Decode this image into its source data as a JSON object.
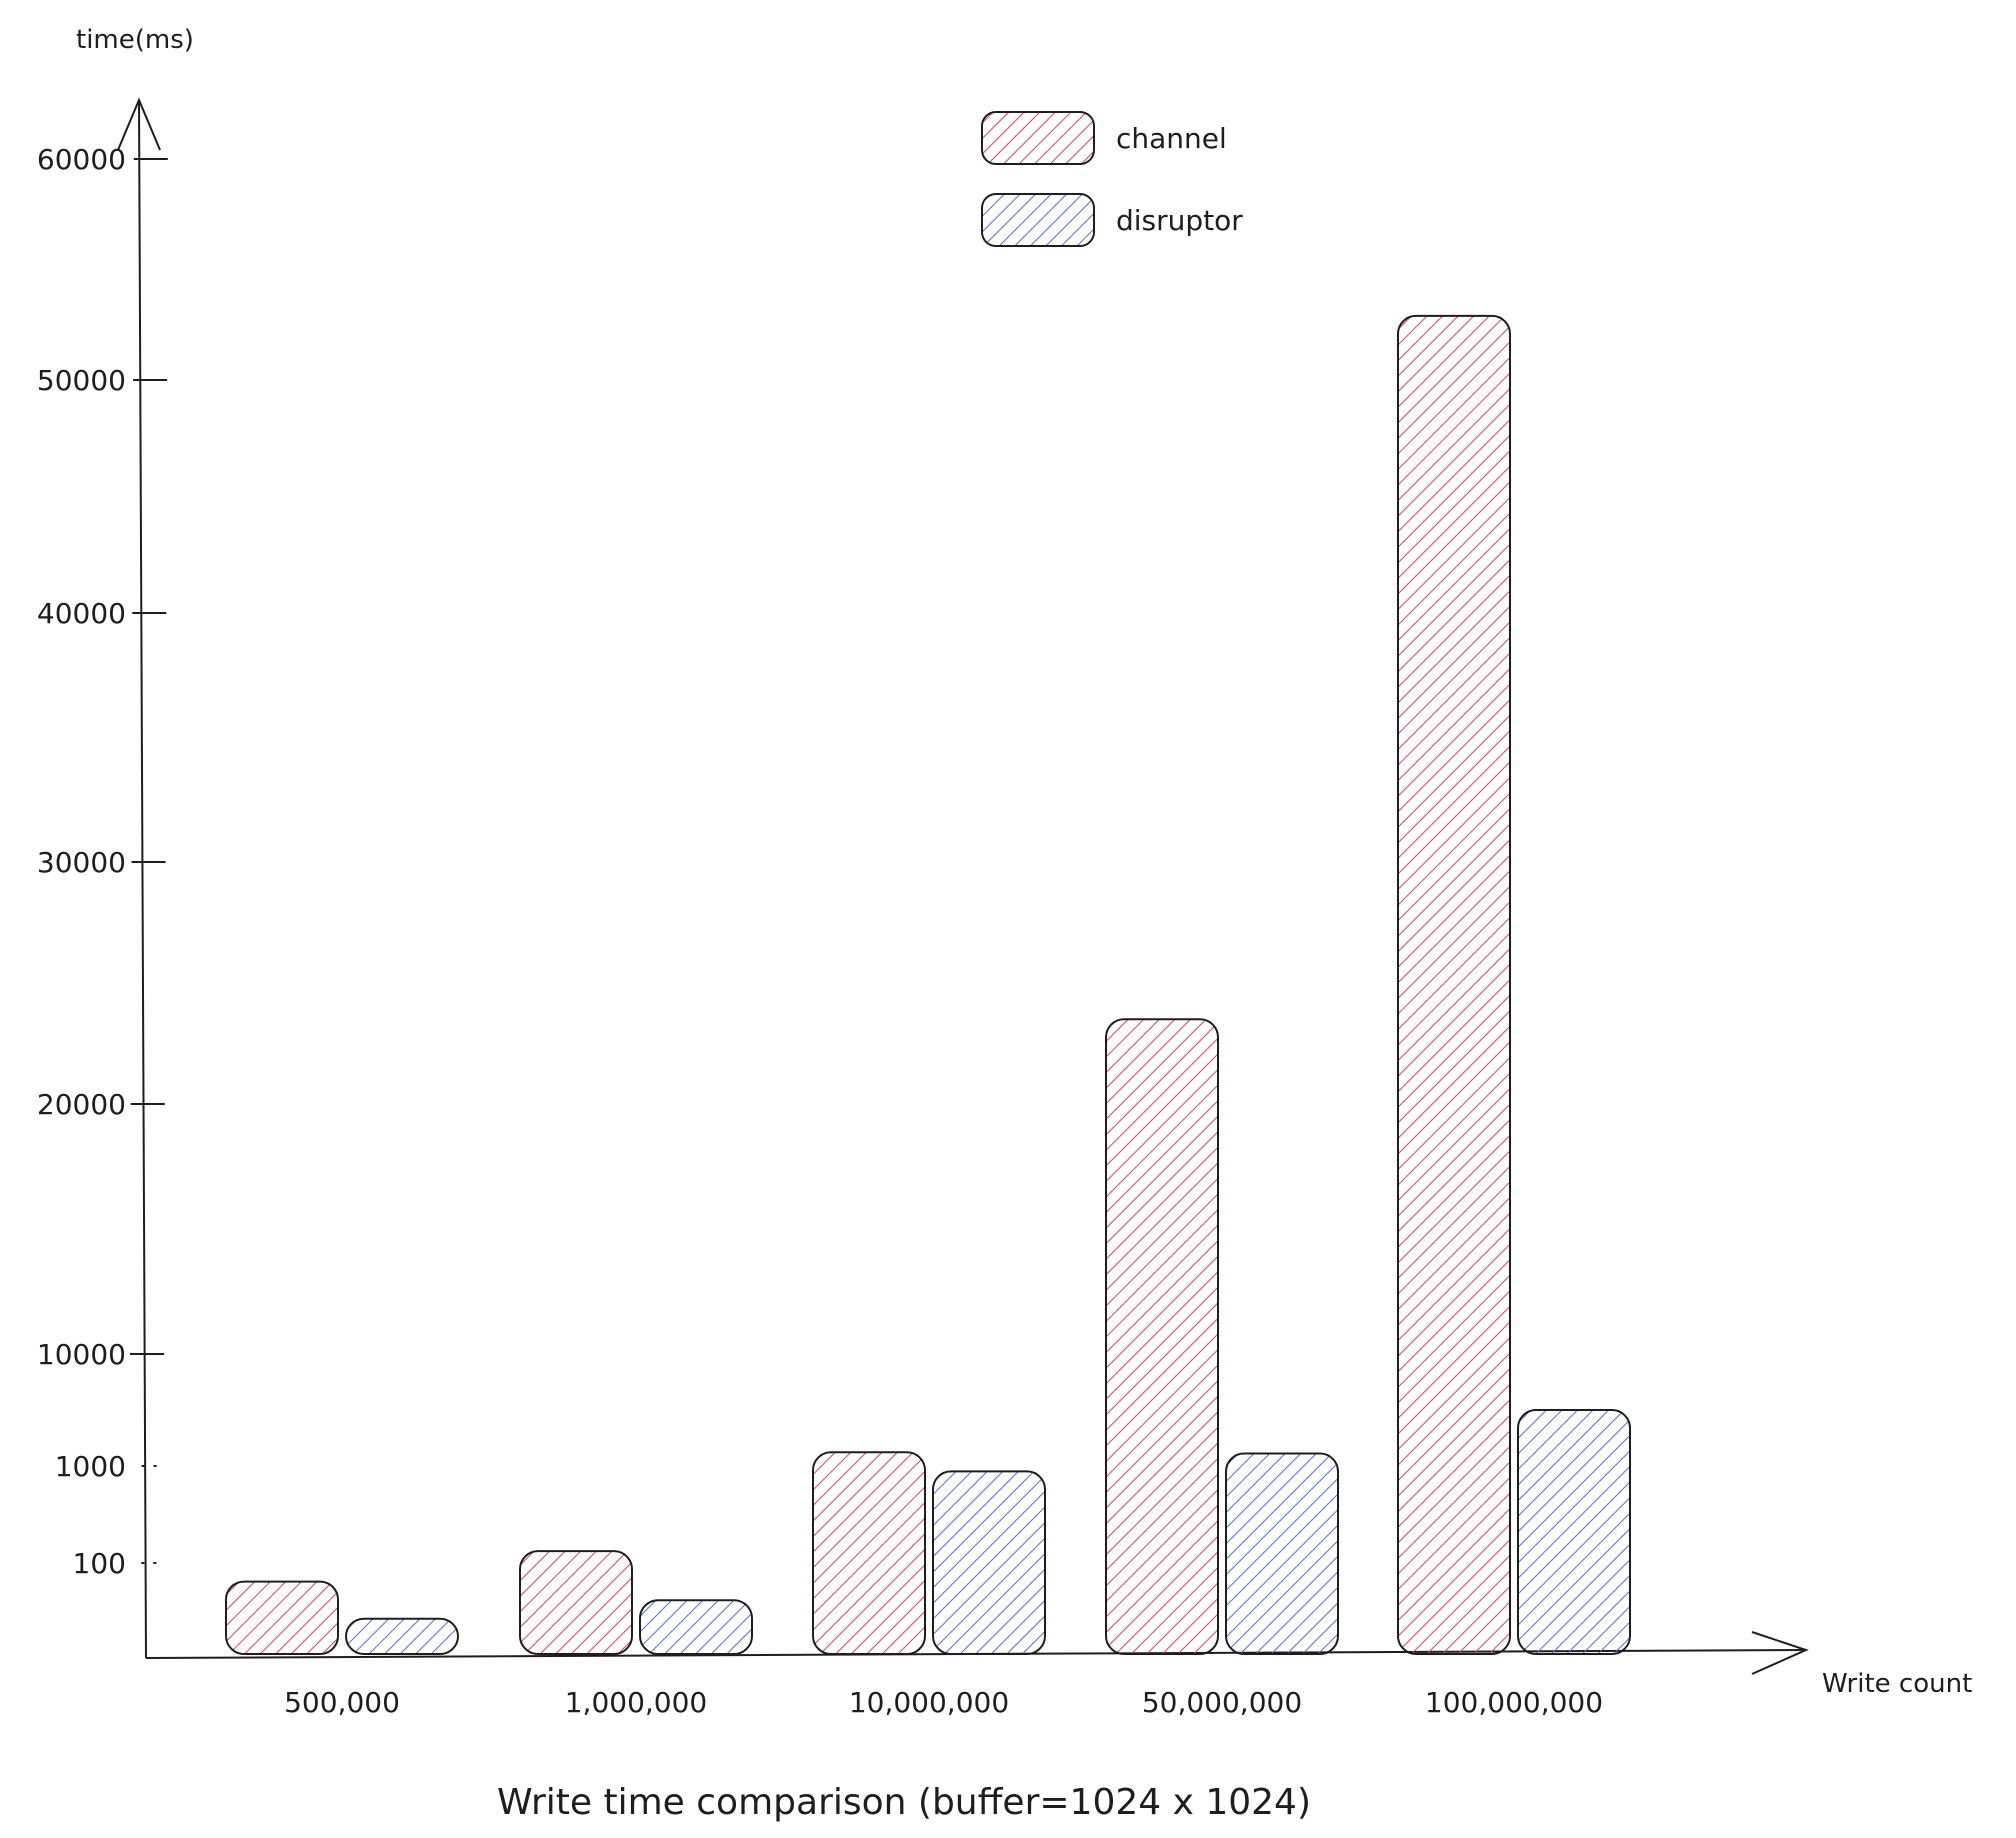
{
  "chart_data": {
    "type": "bar",
    "title": "Write time comparison (buffer=1024 x 1024)",
    "xlabel": "Write count",
    "ylabel": "time(ms)",
    "categories": [
      "500,000",
      "1,000,000",
      "10,000,000",
      "50,000,000",
      "100,000,000"
    ],
    "yticks": [
      "100",
      "1000",
      "10000",
      "20000",
      "30000",
      "40000",
      "50000",
      "60000"
    ],
    "ylim": [
      0,
      60000
    ],
    "y_scale": "piecewise (0–100–1000–10000 compressed, 10000–60000 linear)",
    "grid": false,
    "legend_position": "top-center",
    "series": [
      {
        "name": "channel",
        "color": "#e03e64",
        "values": [
          80,
          210,
          2100,
          23500,
          52900
        ]
      },
      {
        "name": "disruptor",
        "color": "#4a6ee0",
        "values": [
          40,
          60,
          950,
          2000,
          5500
        ]
      }
    ]
  }
}
